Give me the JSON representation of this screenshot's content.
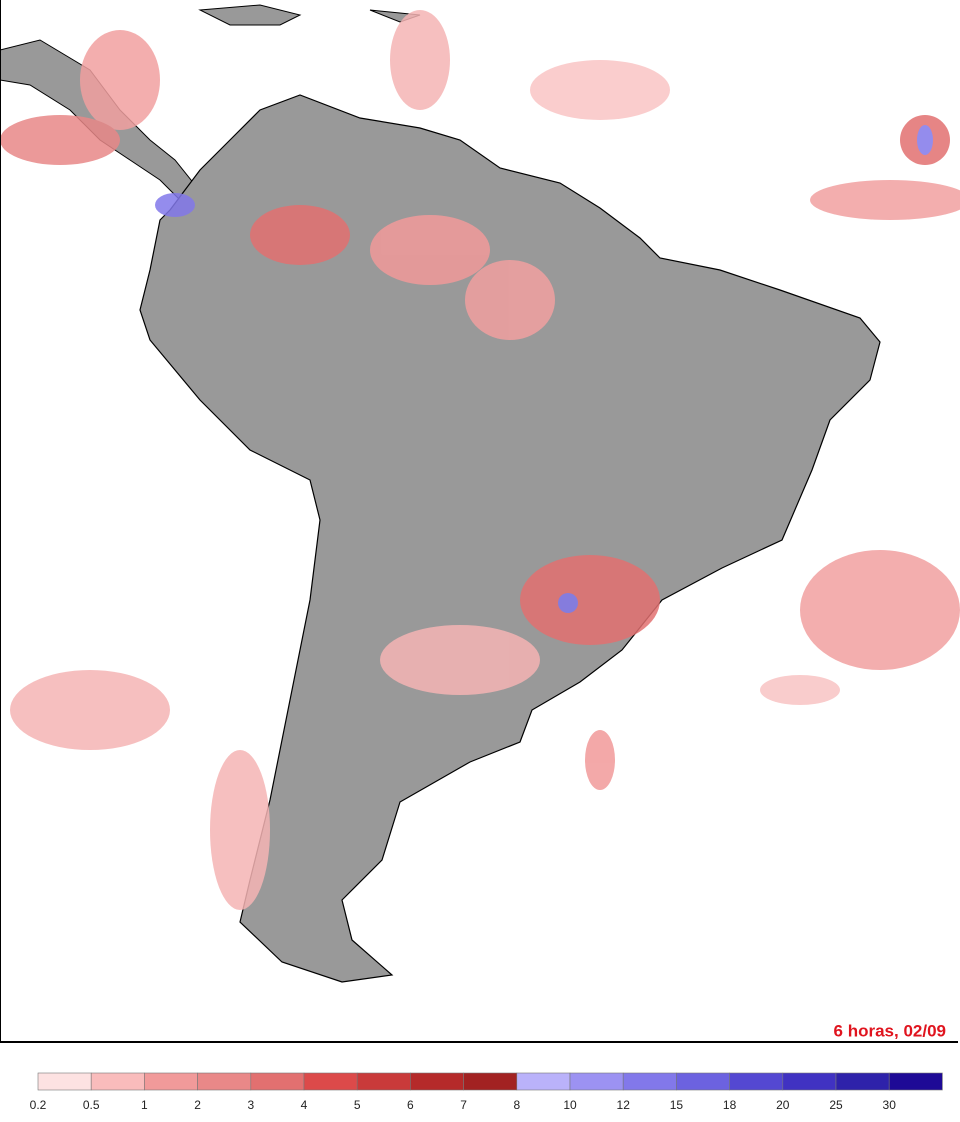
{
  "map": {
    "caption": "6 horas, 02/09",
    "legend": {
      "ticks": [
        0.2,
        0.5,
        1,
        2,
        3,
        4,
        5,
        6,
        7,
        8,
        10,
        12,
        15,
        18,
        20,
        25,
        30
      ],
      "colors": [
        "#fde2e2",
        "#f9bcbc",
        "#f19a9a",
        "#e98888",
        "#e27070",
        "#dc4a4a",
        "#c93a3a",
        "#b52a2a",
        "#a22222",
        "#bab2fa",
        "#9c92f2",
        "#8278ea",
        "#6c62e0",
        "#5448d2",
        "#4032c2",
        "#2e22aa",
        "#1e0a96"
      ]
    }
  }
}
